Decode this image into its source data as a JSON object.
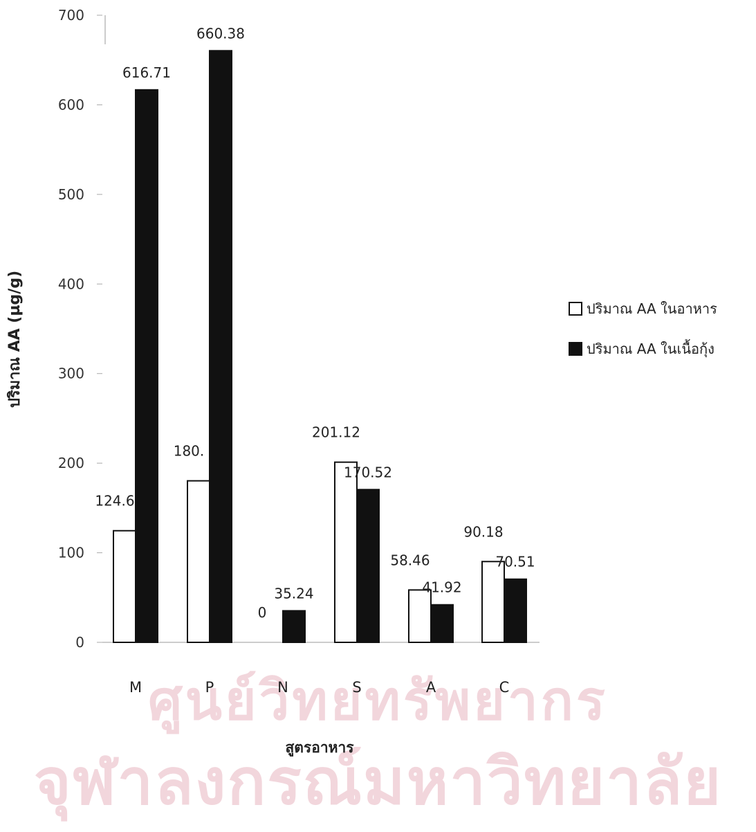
{
  "watermark": {
    "line1": "ศูนย์วิทยทรัพยากร",
    "line2": "จุฬาลงกรณ์มหาวิทยาลัย"
  },
  "chart_data": {
    "type": "bar",
    "xlabel": "สูตรอาหาร",
    "ylabel": "ปริมาณ AA (µg/g)",
    "ylim": [
      0,
      700
    ],
    "yticks": [
      0,
      100,
      200,
      300,
      400,
      500,
      600,
      700
    ],
    "categories": [
      "M",
      "P",
      "N",
      "S",
      "A",
      "C"
    ],
    "legend_position": "right",
    "series": [
      {
        "name": "ปริมาณ AA ในอาหาร",
        "color": "#ffffff",
        "values": [
          124.6,
          180.3,
          0,
          201.12,
          58.46,
          90.18
        ],
        "labels": [
          "124.6",
          "180.",
          "0",
          "201.12",
          "58.46",
          "90.18"
        ]
      },
      {
        "name": "ปริมาณ AA ในเนื้อกุ้ง",
        "color": "#111111",
        "values": [
          616.71,
          660.38,
          35.24,
          170.52,
          41.92,
          70.51
        ],
        "labels": [
          "616.71",
          "660.38",
          "35.24",
          "170.52",
          "41.92",
          "70.51"
        ]
      }
    ]
  }
}
